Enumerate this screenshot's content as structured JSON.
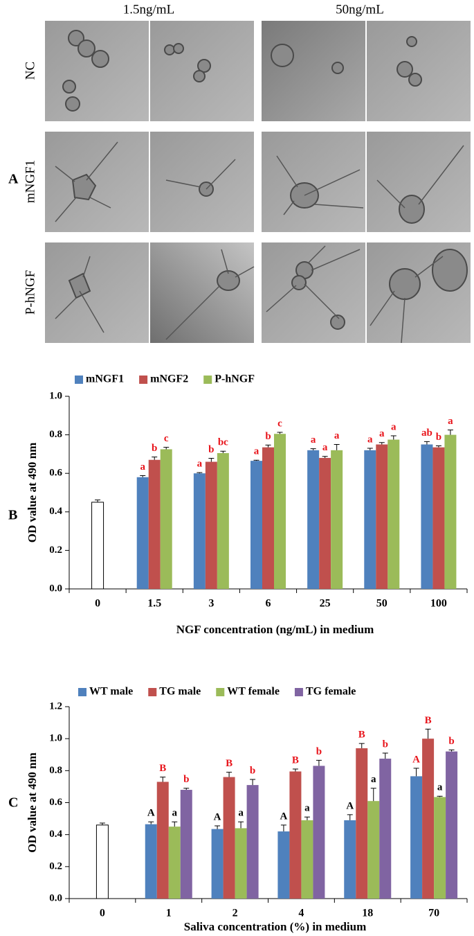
{
  "panel_a": {
    "label": "A",
    "columns": [
      "1.5ng/mL",
      "50ng/mL"
    ],
    "rows": [
      "NC",
      "mNGF1",
      "P-hNGF"
    ]
  },
  "chart_data": [
    {
      "type": "bar",
      "label": "B",
      "ylabel": "OD value at 490 nm",
      "xlabel": "NGF concentration (ng/mL) in medium",
      "categories": [
        "0",
        "1.5",
        "3",
        "6",
        "25",
        "50",
        "100"
      ],
      "ylim": [
        0,
        1
      ],
      "yticks": [
        {
          "value": 0,
          "label": "0.0"
        },
        {
          "value": 0.2,
          "label": "0.2"
        },
        {
          "value": 0.4,
          "label": "0.4"
        },
        {
          "value": 0.6,
          "label": "0.6"
        },
        {
          "value": 0.8,
          "label": "0.8"
        },
        {
          "value": 1,
          "label": "1.0"
        }
      ],
      "series": [
        {
          "color": "#ffffff",
          "values": [
            0.45,
            null,
            null,
            null,
            null,
            null,
            null
          ],
          "errors": [
            0.012,
            null,
            null,
            null,
            null,
            null,
            null
          ]
        },
        {
          "name": "mNGF1",
          "color": "#4f81bd",
          "values": [
            null,
            0.58,
            0.6,
            0.665,
            0.72,
            0.72,
            0.75
          ],
          "errors": [
            null,
            0.008,
            0.004,
            0.003,
            0.008,
            0.01,
            0.015
          ],
          "labels": [
            null,
            "a",
            "a",
            "a",
            "a",
            "a",
            "ab"
          ],
          "label_colors": [
            null,
            "#e8141b",
            "#e8141b",
            "#e8141b",
            "#e8141b",
            "#e8141b",
            "#e8141b"
          ]
        },
        {
          "name": "mNGF2",
          "color": "#c0504d",
          "values": [
            null,
            0.67,
            0.66,
            0.735,
            0.68,
            0.75,
            0.735
          ],
          "errors": [
            null,
            0.015,
            0.018,
            0.012,
            0.008,
            0.01,
            0.008
          ],
          "labels": [
            null,
            "b",
            "b",
            "b",
            "a",
            "a",
            "b"
          ],
          "label_colors": [
            null,
            "#e8141b",
            "#e8141b",
            "#e8141b",
            "#e8141b",
            "#e8141b",
            "#e8141b"
          ]
        },
        {
          "name": "P-hNGF",
          "color": "#9bbb59",
          "values": [
            null,
            0.725,
            0.705,
            0.805,
            0.72,
            0.775,
            0.8
          ],
          "errors": [
            null,
            0.01,
            0.01,
            0.008,
            0.03,
            0.02,
            0.025
          ],
          "labels": [
            null,
            "c",
            "bc",
            "c",
            "a",
            "a",
            "a"
          ],
          "label_colors": [
            null,
            "#e8141b",
            "#e8141b",
            "#e8141b",
            "#e8141b",
            "#e8141b",
            "#e8141b"
          ]
        }
      ]
    },
    {
      "type": "bar",
      "label": "C",
      "ylabel": "OD value at 490 nm",
      "xlabel": "Saliva concentration (%) in medium",
      "categories": [
        "0",
        "1",
        "2",
        "4",
        "18",
        "70"
      ],
      "ylim": [
        0,
        1.2
      ],
      "yticks": [
        {
          "value": 0,
          "label": "0.0"
        },
        {
          "value": 0.2,
          "label": "0.2"
        },
        {
          "value": 0.4,
          "label": "0.4"
        },
        {
          "value": 0.6,
          "label": "0.6"
        },
        {
          "value": 0.8,
          "label": "0.8"
        },
        {
          "value": 1,
          "label": "1.0"
        },
        {
          "value": 1.2,
          "label": "1.2"
        }
      ],
      "series": [
        {
          "color": "#ffffff",
          "values": [
            0.46,
            null,
            null,
            null,
            null,
            null
          ],
          "errors": [
            0.012,
            null,
            null,
            null,
            null,
            null
          ]
        },
        {
          "name": "WT male",
          "color": "#4f81bd",
          "values": [
            null,
            0.465,
            0.435,
            0.42,
            0.49,
            0.765
          ],
          "errors": [
            null,
            0.015,
            0.02,
            0.04,
            0.035,
            0.05
          ],
          "labels": [
            null,
            "A",
            "A",
            "A",
            "A",
            "A"
          ],
          "label_colors": [
            null,
            "#000000",
            "#000000",
            "#000000",
            "#000000",
            "#e8141b"
          ]
        },
        {
          "name": "TG male",
          "color": "#c0504d",
          "values": [
            null,
            0.73,
            0.76,
            0.795,
            0.94,
            1.0
          ],
          "errors": [
            null,
            0.03,
            0.03,
            0.015,
            0.03,
            0.06
          ],
          "labels": [
            null,
            "B",
            "B",
            "B",
            "B",
            "B"
          ],
          "label_colors": [
            null,
            "#e8141b",
            "#e8141b",
            "#e8141b",
            "#e8141b",
            "#e8141b"
          ]
        },
        {
          "name": "WT female",
          "color": "#9bbb59",
          "values": [
            null,
            0.45,
            0.44,
            0.49,
            0.61,
            0.635
          ],
          "errors": [
            null,
            0.03,
            0.04,
            0.02,
            0.08,
            0.005
          ],
          "labels": [
            null,
            "a",
            "a",
            "a",
            "a",
            "a"
          ],
          "label_colors": [
            null,
            "#000000",
            "#000000",
            "#000000",
            "#000000",
            "#000000"
          ]
        },
        {
          "name": "TG female",
          "color": "#8064a2",
          "values": [
            null,
            0.68,
            0.71,
            0.83,
            0.875,
            0.92
          ],
          "errors": [
            null,
            0.01,
            0.035,
            0.035,
            0.035,
            0.01
          ],
          "labels": [
            null,
            "b",
            "b",
            "b",
            "b",
            "b"
          ],
          "label_colors": [
            null,
            "#e8141b",
            "#e8141b",
            "#e8141b",
            "#e8141b",
            "#e8141b"
          ]
        }
      ]
    }
  ]
}
